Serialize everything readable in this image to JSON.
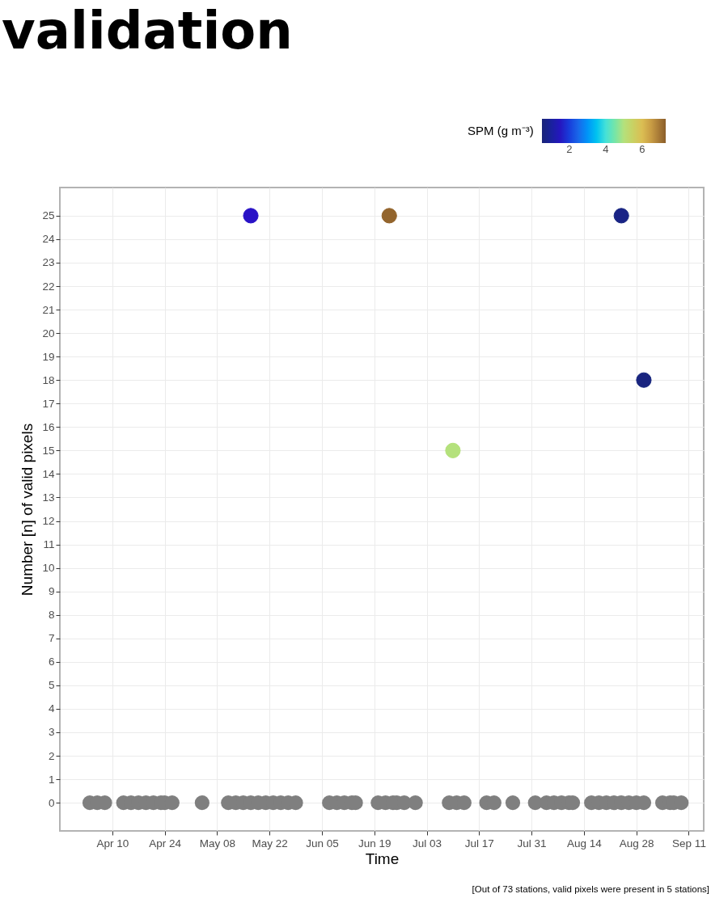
{
  "chart_data": {
    "type": "scatter",
    "title": "validation",
    "xlabel": "Time",
    "ylabel": "Number [n] of valid pixels",
    "clabel": "SPM (g m⁻³)",
    "annotations": [
      "[Out of 73  stations, valid pixels were present in 5  stations]"
    ],
    "xlim": [
      "--03-27",
      "--09-15"
    ],
    "xticks": [
      {
        "value": "--04-10",
        "label": "Apr 10"
      },
      {
        "value": "--04-24",
        "label": "Apr 24"
      },
      {
        "value": "--05-08",
        "label": "May 08"
      },
      {
        "value": "--05-22",
        "label": "May 22"
      },
      {
        "value": "--06-05",
        "label": "Jun 05"
      },
      {
        "value": "--06-19",
        "label": "Jun 19"
      },
      {
        "value": "--07-03",
        "label": "Jul 03"
      },
      {
        "value": "--07-17",
        "label": "Jul 17"
      },
      {
        "value": "--07-31",
        "label": "Jul 31"
      },
      {
        "value": "--08-14",
        "label": "Aug 14"
      },
      {
        "value": "--08-28",
        "label": "Aug 28"
      },
      {
        "value": "--09-11",
        "label": "Sep 11"
      }
    ],
    "ylim": [
      -1.2,
      26.2
    ],
    "yticks": [
      0,
      1,
      2,
      3,
      4,
      5,
      6,
      7,
      8,
      9,
      10,
      11,
      12,
      13,
      14,
      15,
      16,
      17,
      18,
      19,
      20,
      21,
      22,
      23,
      24,
      25
    ],
    "clim": [
      0.5,
      7.3
    ],
    "cticks": [
      2,
      4,
      6
    ],
    "grid": true,
    "marker": "circle",
    "series": [
      {
        "color": "#7f7f7f",
        "x": [
          "--04-04",
          "--04-06",
          "--04-08",
          "--04-13",
          "--04-15",
          "--04-17",
          "--04-19",
          "--04-21",
          "--04-23",
          "--04-24",
          "--04-26",
          "--05-04",
          "--05-11",
          "--05-13",
          "--05-15",
          "--05-17",
          "--05-19",
          "--05-21",
          "--05-23",
          "--05-25",
          "--05-27",
          "--05-29",
          "--06-07",
          "--06-09",
          "--06-11",
          "--06-13",
          "--06-14",
          "--06-20",
          "--06-22",
          "--06-24",
          "--06-25",
          "--06-27",
          "--06-30",
          "--07-09",
          "--07-11",
          "--07-13",
          "--07-19",
          "--07-21",
          "--07-26",
          "--08-01",
          "--08-04",
          "--08-06",
          "--08-08",
          "--08-10",
          "--08-11",
          "--08-16",
          "--08-18",
          "--08-20",
          "--08-22",
          "--08-24",
          "--08-26",
          "--08-28",
          "--08-30",
          "--09-04",
          "--09-06",
          "--09-07",
          "--09-09"
        ],
        "values": [
          0,
          0,
          0,
          0,
          0,
          0,
          0,
          0,
          0,
          0,
          0,
          0,
          0,
          0,
          0,
          0,
          0,
          0,
          0,
          0,
          0,
          0,
          0,
          0,
          0,
          0,
          0,
          0,
          0,
          0,
          0,
          0,
          0,
          0,
          0,
          0,
          0,
          0,
          0,
          0,
          0,
          0,
          0,
          0,
          0,
          0,
          0,
          0,
          0,
          0,
          0,
          0,
          0,
          0,
          0,
          0,
          0
        ]
      },
      {
        "x": [
          "--05-17",
          "--06-23",
          "--07-10",
          "--08-24",
          "--08-30"
        ],
        "values": [
          25,
          25,
          15,
          25,
          18
        ],
        "colors": [
          "#2a14c8",
          "#936329",
          "#b5e17a",
          "#1a2a80",
          "#1a2a80"
        ],
        "cvalues": [
          1.6,
          7.2,
          5.0,
          0.7,
          0.6
        ]
      }
    ]
  }
}
